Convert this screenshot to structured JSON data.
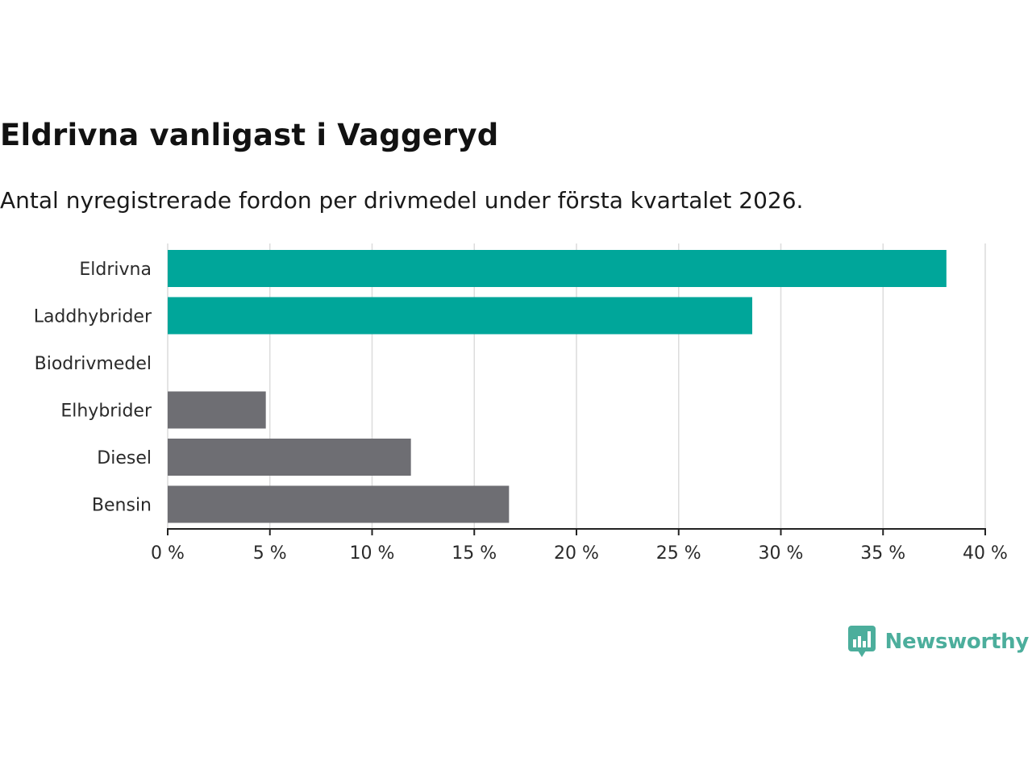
{
  "title": "Eldrivna vanligast i Vaggeryd",
  "subtitle": "Antal nyregistrerade fordon per drivmedel under första kvartalet 2026.",
  "logo": {
    "text": "Newsworthy",
    "icon": "newsworthy-logo-icon"
  },
  "colors": {
    "highlight": "#00a69a",
    "default": "#6e6e73"
  },
  "chart_data": {
    "type": "bar",
    "orientation": "horizontal",
    "categories": [
      "Eldrivna",
      "Laddhybrider",
      "Biodrivmedel",
      "Elhybrider",
      "Diesel",
      "Bensin"
    ],
    "values": [
      38.1,
      28.6,
      0,
      4.8,
      11.9,
      16.7
    ],
    "highlight": [
      true,
      true,
      false,
      false,
      false,
      false
    ],
    "xlim": [
      0,
      40
    ],
    "xticks": [
      0,
      5,
      10,
      15,
      20,
      25,
      30,
      35,
      40
    ],
    "xtick_labels": [
      "0 %",
      "5 %",
      "10 %",
      "15 %",
      "20 %",
      "25 %",
      "30 %",
      "35 %",
      "40 %"
    ],
    "xlabel": "",
    "ylabel": "",
    "grid": true
  }
}
